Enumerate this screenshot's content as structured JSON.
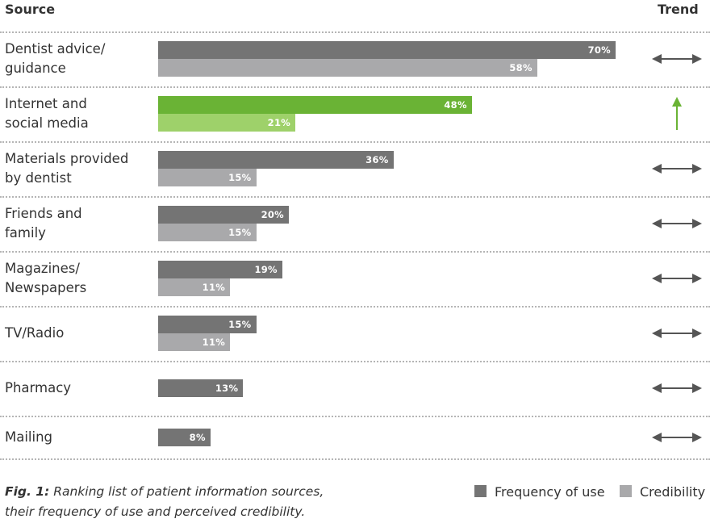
{
  "headers": {
    "source": "Source",
    "trend": "Trend"
  },
  "colors": {
    "frequency": "#747474",
    "credibility": "#a9a9ab",
    "frequency_highlight": "#6ab335",
    "credibility_highlight": "#9ed16a",
    "trend_default": "#555555",
    "trend_highlight": "#6ab335"
  },
  "chart_data": {
    "type": "bar",
    "orientation": "horizontal",
    "title": "",
    "categories": [
      [
        "Dentist advice/",
        "guidance"
      ],
      [
        "Internet and",
        "social media"
      ],
      [
        "Materials provided",
        "by dentist"
      ],
      [
        "Friends and",
        "family"
      ],
      [
        "Magazines/",
        "Newspapers"
      ],
      [
        "TV/Radio"
      ],
      [
        "Pharmacy"
      ],
      [
        "Mailing"
      ]
    ],
    "series": [
      {
        "name": "Frequency of use",
        "values": [
          70,
          48,
          36,
          20,
          19,
          15,
          13,
          8
        ]
      },
      {
        "name": "Credibility",
        "values": [
          58,
          21,
          15,
          15,
          11,
          11,
          null,
          null
        ]
      }
    ],
    "value_labels": {
      "frequency": [
        "70%",
        "48%",
        "36%",
        "20%",
        "19%",
        "15%",
        "13%",
        "8%"
      ],
      "credibility": [
        "58%",
        "21%",
        "15%",
        "15%",
        "11%",
        "11%",
        "",
        ""
      ]
    },
    "trend": [
      "stable",
      "up",
      "stable",
      "stable",
      "stable",
      "stable",
      "stable",
      "stable"
    ],
    "highlight_index": 1,
    "xlim": [
      0,
      100
    ],
    "grid": false,
    "legend_position": "bottom-right"
  },
  "caption": {
    "label": "Fig. 1:",
    "line1": " Ranking list of patient information sources,",
    "line2": "their frequency of use and perceived credibility."
  }
}
